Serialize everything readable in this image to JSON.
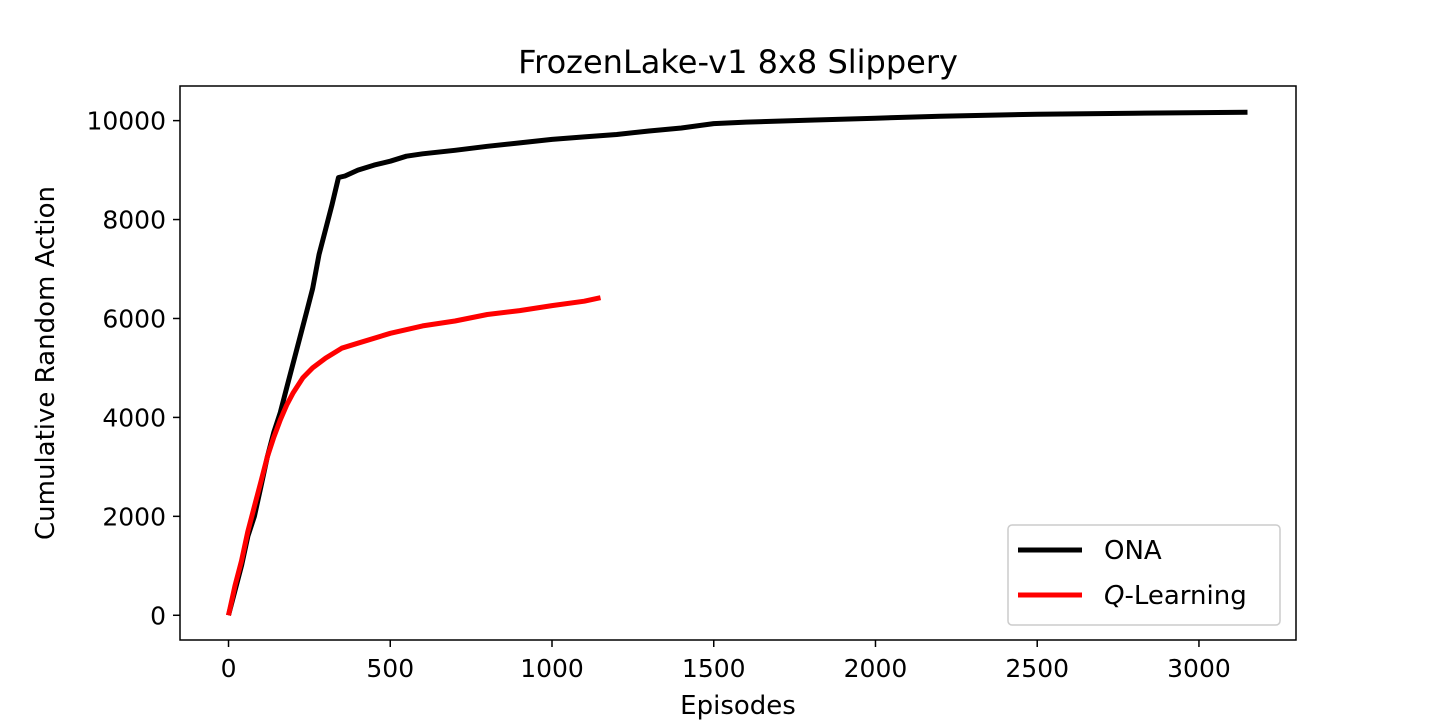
{
  "chart_data": {
    "type": "line",
    "title": "FrozenLake-v1 8x8 Slippery",
    "xlabel": "Episodes",
    "ylabel": "Cumulative Random Action",
    "xlim": [
      -150,
      3300
    ],
    "ylim": [
      -500,
      10700
    ],
    "x_ticks": [
      0,
      500,
      1000,
      1500,
      2000,
      2500,
      3000
    ],
    "y_ticks": [
      0,
      2000,
      4000,
      6000,
      8000,
      10000
    ],
    "grid": false,
    "legend_position": "lower-right",
    "series": [
      {
        "name": "ONA",
        "color": "#000000",
        "points": [
          [
            0,
            0
          ],
          [
            20,
            500
          ],
          [
            40,
            1000
          ],
          [
            60,
            1600
          ],
          [
            80,
            2000
          ],
          [
            100,
            2600
          ],
          [
            120,
            3200
          ],
          [
            140,
            3700
          ],
          [
            160,
            4100
          ],
          [
            180,
            4600
          ],
          [
            200,
            5100
          ],
          [
            220,
            5600
          ],
          [
            240,
            6100
          ],
          [
            260,
            6600
          ],
          [
            280,
            7300
          ],
          [
            300,
            7800
          ],
          [
            320,
            8300
          ],
          [
            340,
            8850
          ],
          [
            360,
            8880
          ],
          [
            400,
            9000
          ],
          [
            450,
            9100
          ],
          [
            500,
            9180
          ],
          [
            550,
            9280
          ],
          [
            600,
            9330
          ],
          [
            700,
            9400
          ],
          [
            800,
            9480
          ],
          [
            900,
            9550
          ],
          [
            1000,
            9620
          ],
          [
            1100,
            9670
          ],
          [
            1200,
            9720
          ],
          [
            1300,
            9790
          ],
          [
            1400,
            9850
          ],
          [
            1500,
            9940
          ],
          [
            1600,
            9970
          ],
          [
            1800,
            10010
          ],
          [
            2000,
            10050
          ],
          [
            2200,
            10090
          ],
          [
            2500,
            10130
          ],
          [
            2800,
            10150
          ],
          [
            3150,
            10170
          ]
        ]
      },
      {
        "name": "Q-Learning",
        "name_italic": "Q",
        "name_rest": "-Learning",
        "color": "#ff0000",
        "points": [
          [
            0,
            0
          ],
          [
            20,
            600
          ],
          [
            40,
            1100
          ],
          [
            60,
            1700
          ],
          [
            80,
            2200
          ],
          [
            100,
            2700
          ],
          [
            120,
            3200
          ],
          [
            140,
            3600
          ],
          [
            160,
            3950
          ],
          [
            180,
            4250
          ],
          [
            200,
            4500
          ],
          [
            230,
            4800
          ],
          [
            260,
            5000
          ],
          [
            300,
            5200
          ],
          [
            350,
            5400
          ],
          [
            400,
            5500
          ],
          [
            500,
            5700
          ],
          [
            600,
            5850
          ],
          [
            700,
            5950
          ],
          [
            800,
            6080
          ],
          [
            900,
            6160
          ],
          [
            1000,
            6260
          ],
          [
            1100,
            6350
          ],
          [
            1150,
            6420
          ]
        ]
      }
    ]
  }
}
